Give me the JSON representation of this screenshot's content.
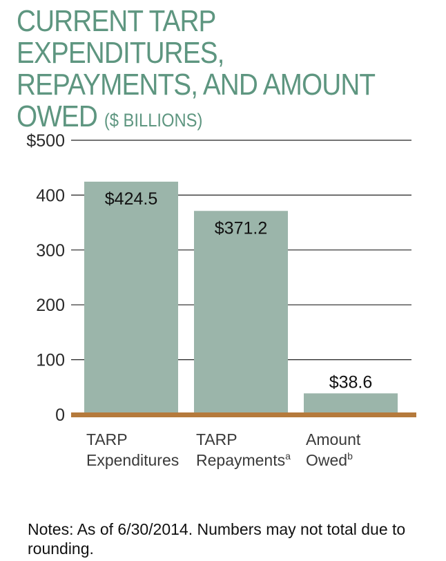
{
  "title": {
    "main": "CURRENT TARP EXPENDITURES, REPAYMENTS, AND AMOUNT OWED",
    "unit": "($ BILLIONS)"
  },
  "notes": "Notes: As of 6/30/2014. Numbers may not total due to rounding.",
  "colors": {
    "bar": "#9bb5aa",
    "baseline": "#b57a3c",
    "grid": "#222222",
    "title": "#5e9680"
  },
  "chart_data": {
    "type": "bar",
    "categories": [
      {
        "lines": [
          "TARP",
          "Expenditures"
        ],
        "sup": ""
      },
      {
        "lines": [
          "TARP",
          "Repayments"
        ],
        "sup": "a"
      },
      {
        "lines": [
          "Amount",
          "Owed"
        ],
        "sup": "b"
      }
    ],
    "values": [
      424.5,
      371.2,
      38.6
    ],
    "value_labels": [
      "$424.5",
      "$371.2",
      "$38.6"
    ],
    "yticks": [
      0,
      100,
      200,
      300,
      400,
      500
    ],
    "ytick_labels": [
      "0",
      "100",
      "200",
      "300",
      "400",
      "$500"
    ],
    "ylim": [
      0,
      500
    ],
    "grid": true
  }
}
